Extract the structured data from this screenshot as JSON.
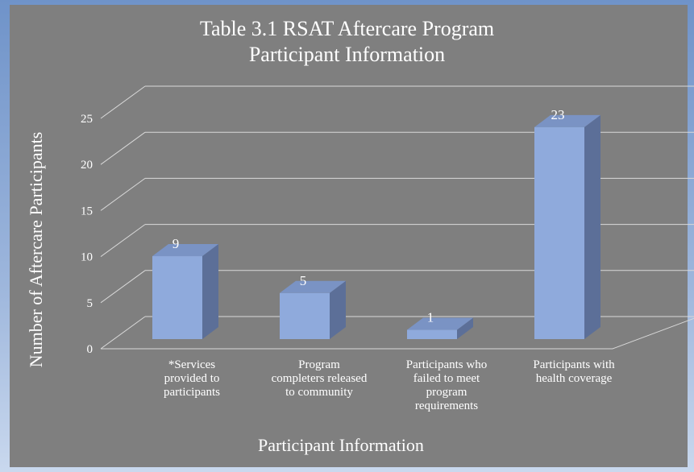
{
  "chart_data": {
    "type": "bar3d",
    "title": "Table 3.1 RSAT Aftercare Program Participant Information",
    "x_label": "Participant Information",
    "y_label": "Number of Aftercare Participants",
    "categories": [
      "*Services provided to participants",
      "Program completers released to community",
      "Participants who failed to meet program requirements",
      "Participants with health coverage"
    ],
    "values": [
      9,
      5,
      1,
      23
    ],
    "color": "#8faadc",
    "ylim": [
      0,
      25
    ],
    "yticks": [
      0,
      5,
      10,
      15,
      20,
      25
    ],
    "grid": true
  }
}
